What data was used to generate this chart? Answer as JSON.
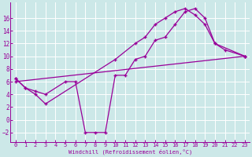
{
  "xlabel": "Windchill (Refroidissement éolien,°C)",
  "bg_color": "#cce8e8",
  "line_color": "#990099",
  "marker": "+",
  "xlim": [
    -0.5,
    23.5
  ],
  "ylim": [
    -3.5,
    18.5
  ],
  "xticks": [
    0,
    1,
    2,
    3,
    4,
    5,
    6,
    7,
    8,
    9,
    10,
    11,
    12,
    13,
    14,
    15,
    16,
    17,
    18,
    19,
    20,
    21,
    22,
    23
  ],
  "yticks": [
    -2,
    0,
    2,
    4,
    6,
    8,
    10,
    12,
    14,
    16
  ],
  "series1_x": [
    0,
    1,
    2,
    3,
    4,
    5,
    6,
    7,
    8,
    9,
    10,
    11,
    12,
    13,
    14,
    15,
    16,
    17,
    18,
    19,
    20,
    21,
    22,
    23
  ],
  "series1_y": [
    6.5,
    5,
    4,
    2.5,
    null,
    null,
    null,
    null,
    null,
    null,
    9.5,
    null,
    12,
    13,
    15,
    16,
    17,
    17.5,
    16.5,
    15,
    12,
    null,
    null,
    10
  ],
  "series2_x": [
    0,
    1,
    2,
    3,
    5,
    6,
    7,
    8,
    9,
    10,
    11,
    12,
    13,
    14,
    15,
    16,
    17,
    18,
    19,
    20,
    21,
    23
  ],
  "series2_y": [
    6.5,
    5,
    4.5,
    4,
    6,
    6,
    -2,
    -2,
    -2,
    7,
    7,
    9.5,
    10,
    12.5,
    13,
    15,
    17,
    17.5,
    16,
    12,
    11,
    10
  ],
  "series3_x": [
    0,
    23
  ],
  "series3_y": [
    6,
    10
  ]
}
